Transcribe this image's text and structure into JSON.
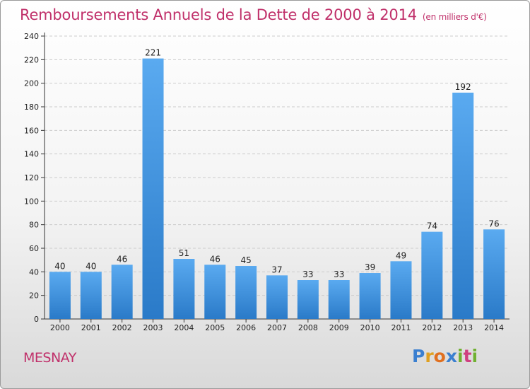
{
  "chart_data": {
    "type": "bar",
    "title": "Remboursements Annuels de la Dette de 2000 à 2014",
    "unit": "(en milliers d'€)",
    "categories": [
      "2000",
      "2001",
      "2002",
      "2003",
      "2004",
      "2005",
      "2006",
      "2007",
      "2008",
      "2009",
      "2010",
      "2011",
      "2012",
      "2013",
      "2014"
    ],
    "values": [
      40,
      40,
      46,
      221,
      51,
      46,
      45,
      37,
      33,
      33,
      39,
      49,
      74,
      192,
      76
    ],
    "value_labels": [
      "40",
      "40",
      "46",
      "221",
      "51",
      "46",
      "45",
      "37",
      "33",
      "33",
      "39",
      "49",
      "74",
      "192",
      "76"
    ],
    "yticks": [
      "0",
      "20",
      "40",
      "60",
      "80",
      "100",
      "120",
      "140",
      "160",
      "180",
      "200",
      "220",
      "240"
    ],
    "ylim": [
      0,
      240
    ],
    "grid": true,
    "bar_color": "#4a9be0"
  },
  "place": "MESNAY",
  "logo": {
    "letters": [
      "P",
      "r",
      "o",
      "x",
      "i",
      "t",
      "i"
    ],
    "colors": [
      "#3a7fd0",
      "#e0a020",
      "#e07020",
      "#3a7fd0",
      "#70b030",
      "#d04080",
      "#70b030"
    ]
  }
}
